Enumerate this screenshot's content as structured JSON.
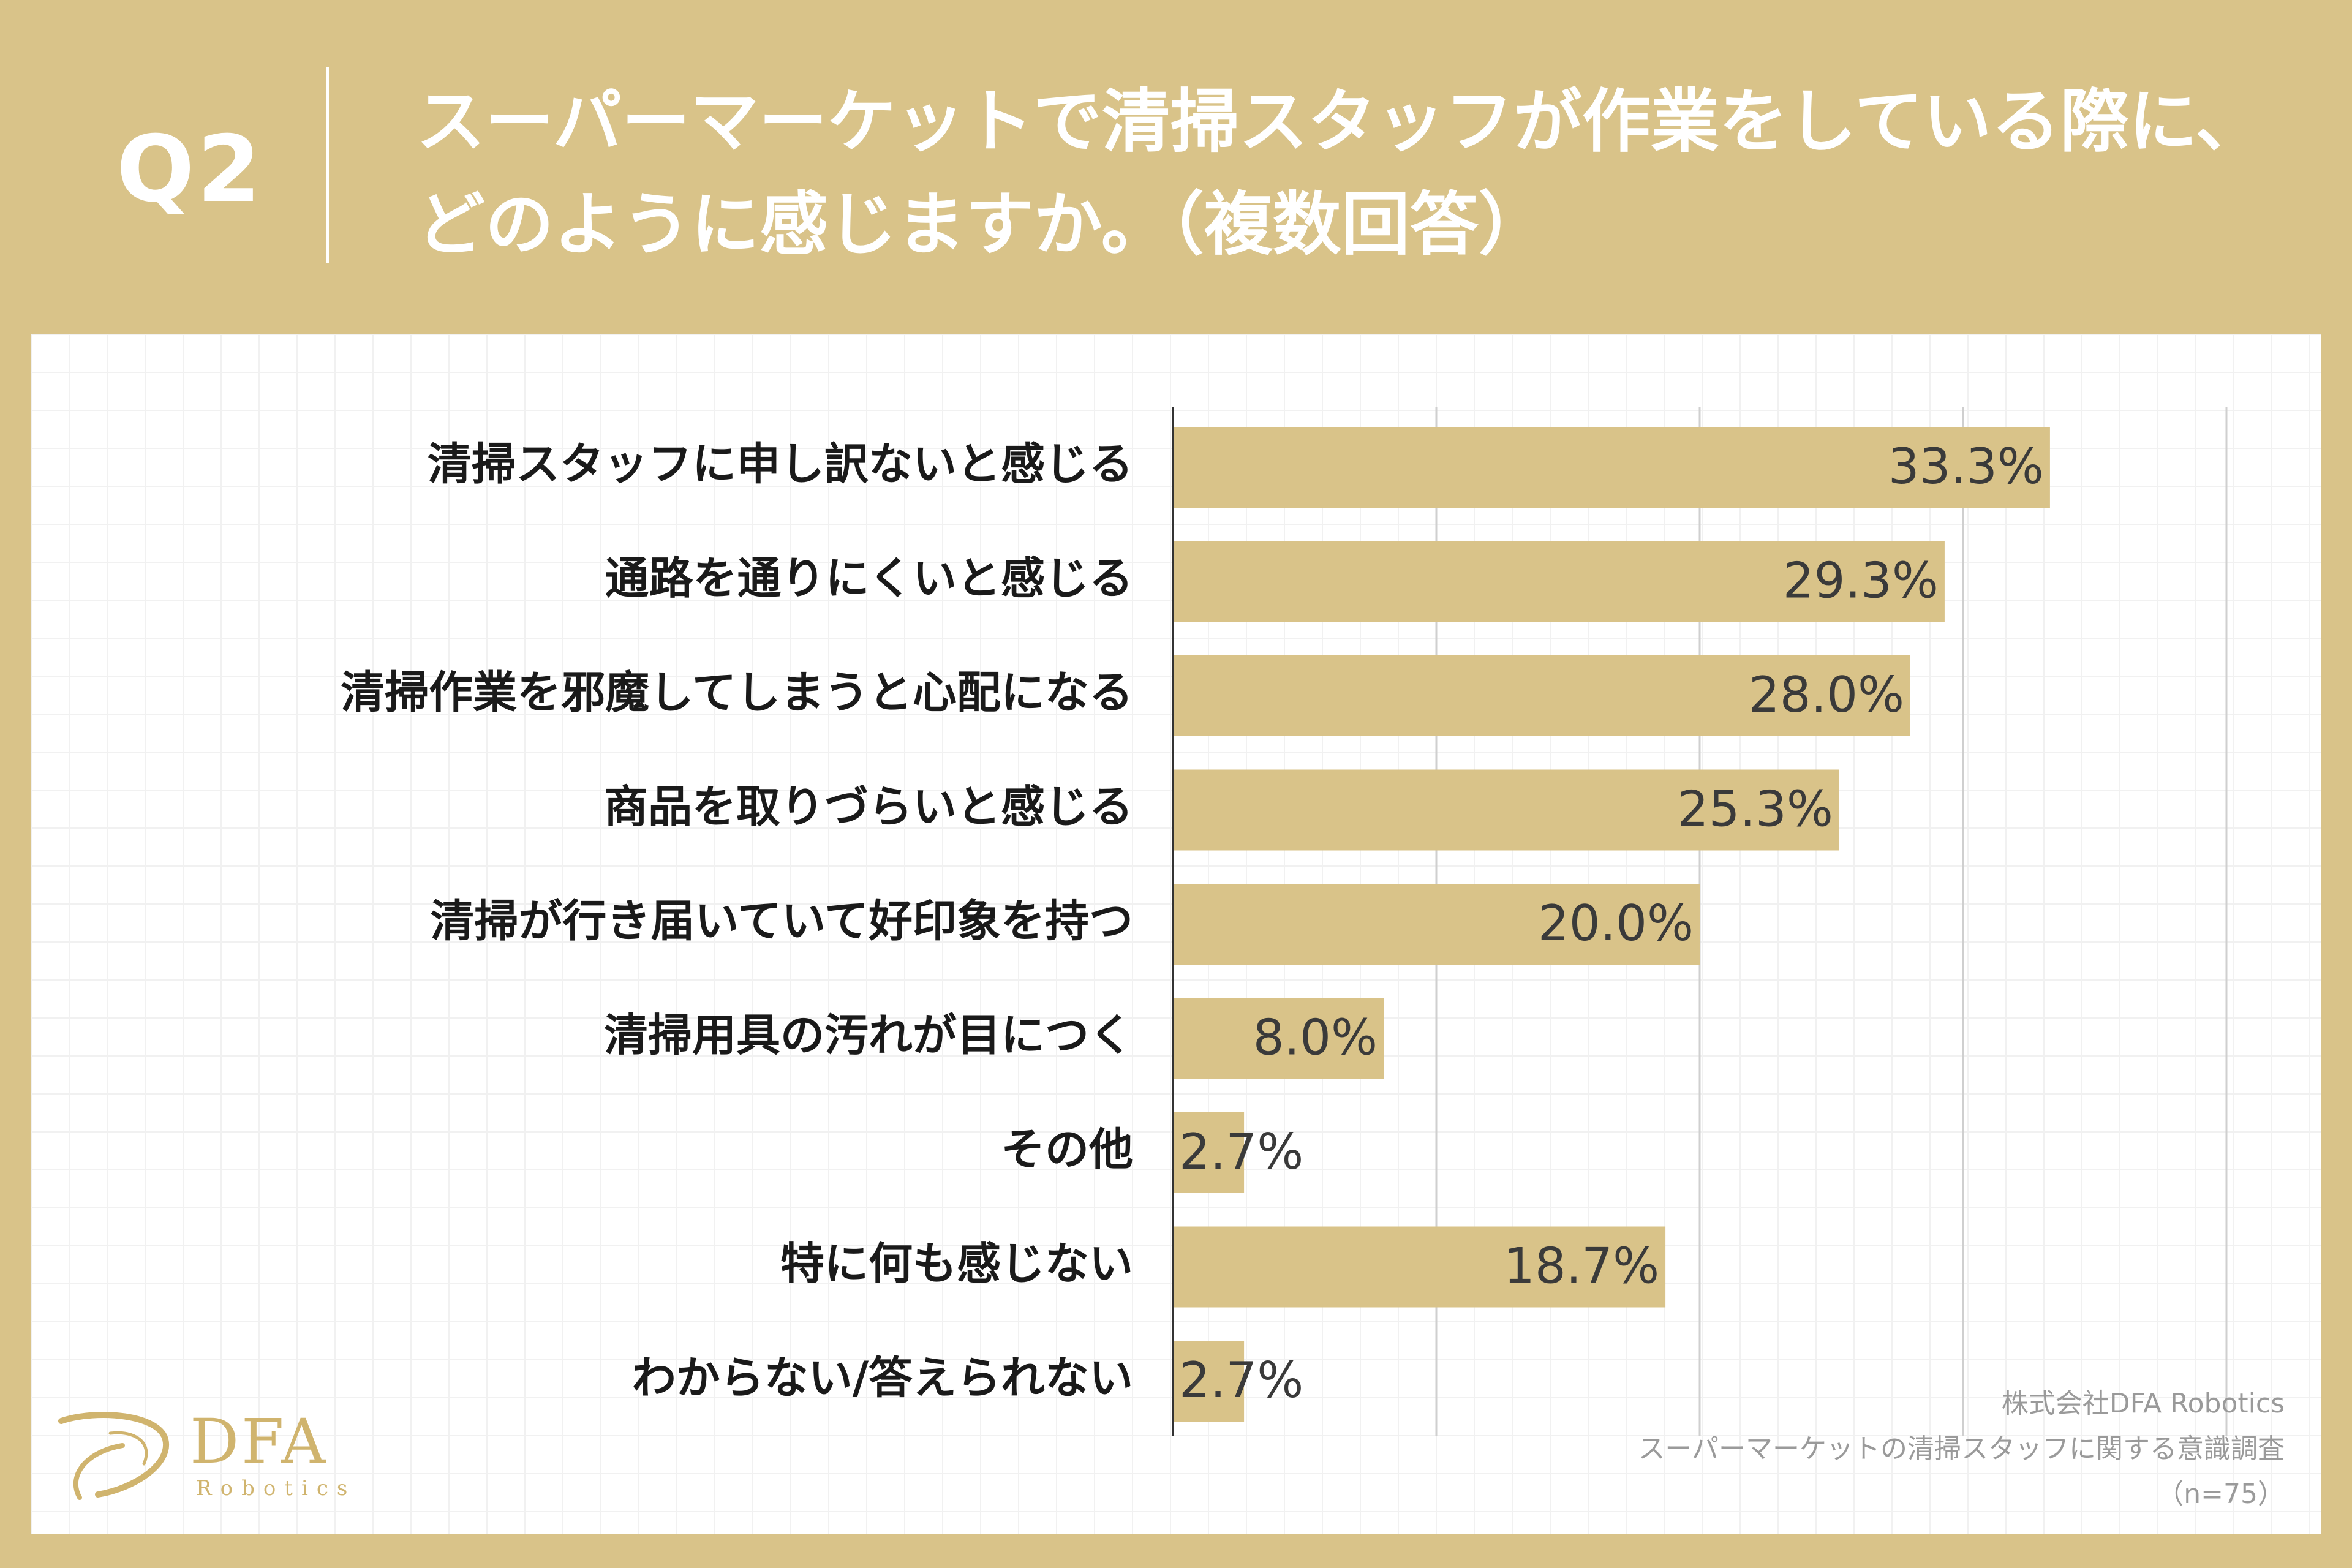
{
  "header": {
    "question_number": "Q2",
    "title_line1": "スーパーマーケットで清掃スタッフが作業をしている際に、",
    "title_line2": "どのように感じますか。（複数回答）"
  },
  "colors": {
    "background": "#d9c389",
    "bar": "#d9c389",
    "panel": "#ffffff"
  },
  "chart_data": {
    "type": "bar",
    "orientation": "horizontal",
    "categories": [
      "清掃スタッフに申し訳ないと感じる",
      "通路を通りにくいと感じる",
      "清掃作業を邪魔してしまうと心配になる",
      "商品を取りづらいと感じる",
      "清掃が行き届いていて好印象を持つ",
      "清掃用具の汚れが目につく",
      "その他",
      "特に何も感じない",
      "わからない/答えられない"
    ],
    "values": [
      33.3,
      29.3,
      28.0,
      25.3,
      20.0,
      8.0,
      2.7,
      18.7,
      2.7
    ],
    "value_labels": [
      "33.3%",
      "29.3%",
      "28.0%",
      "25.3%",
      "20.0%",
      "8.0%",
      "2.7%",
      "18.7%",
      "2.7%"
    ],
    "xlim": [
      0,
      40
    ],
    "grid": true,
    "legend": "none"
  },
  "source": {
    "company": "株式会社DFA Robotics",
    "survey": "スーパーマーケットの清掃スタッフに関する意識調査",
    "sample": "（n=75）"
  },
  "logo": {
    "name": "DFA",
    "sub": "Robotics"
  }
}
